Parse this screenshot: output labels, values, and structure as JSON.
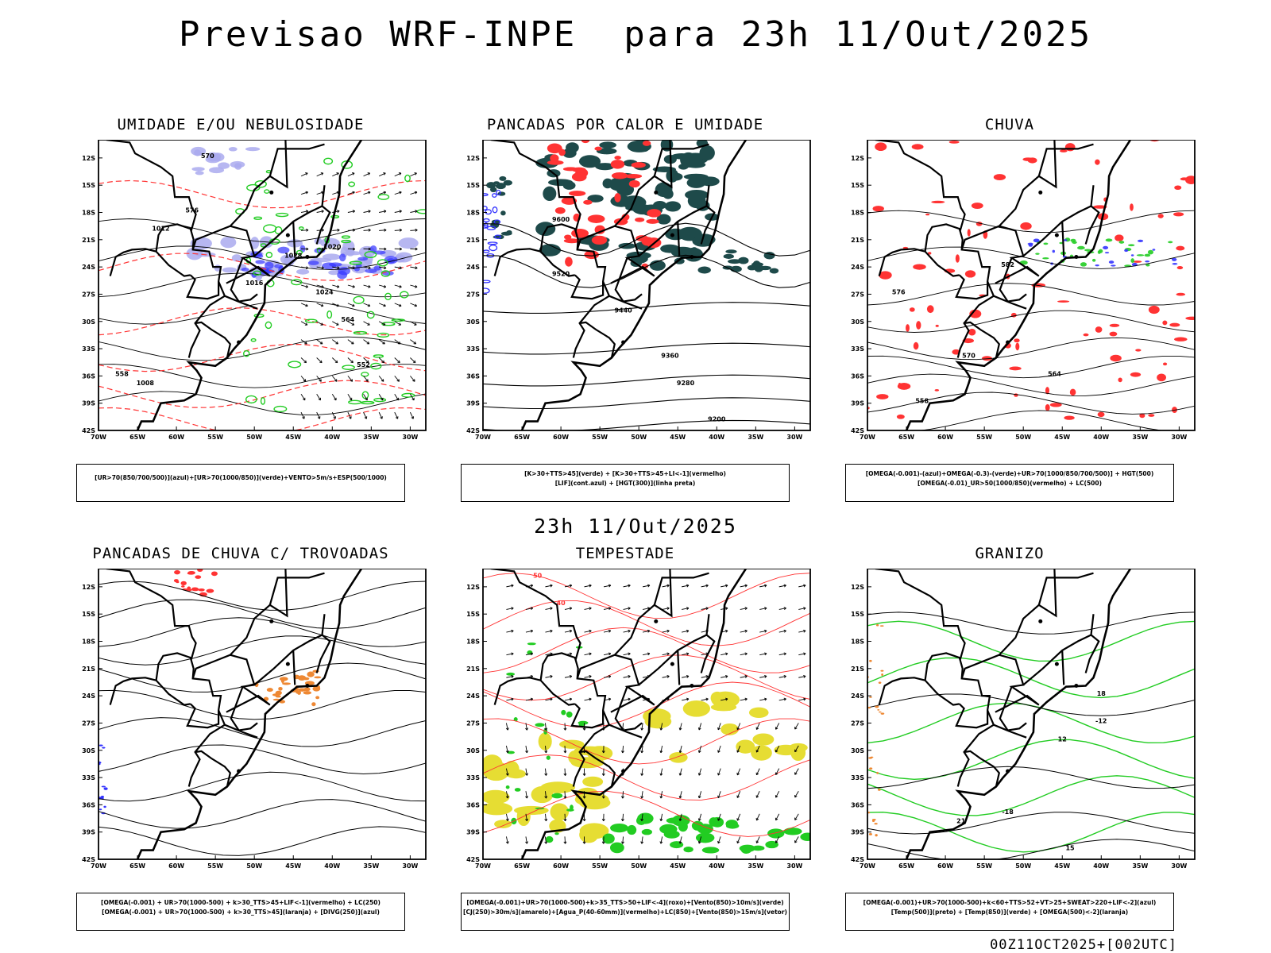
{
  "title": "Previsao WRF-INPE  para 23h 11/Out/2025",
  "mid_label": "23h 11/Out/2025",
  "footer": "00Z11OCT2025+[002UTC]",
  "axes": {
    "lat_labels": [
      "12S",
      "15S",
      "18S",
      "21S",
      "24S",
      "27S",
      "30S",
      "33S",
      "36S",
      "39S",
      "42S"
    ],
    "lon_labels": [
      "70W",
      "65W",
      "60W",
      "55W",
      "50W",
      "45W",
      "40W",
      "35W",
      "30W"
    ]
  },
  "colors": {
    "green": "#22cc22",
    "red": "#ff3333",
    "blue": "#3333ff",
    "lavender": "#aaaaee",
    "dark_teal": "#1e4a4a",
    "yellow": "#e6dd33",
    "orange": "#ee8833"
  },
  "panels": [
    {
      "title": "UMIDADE E/OU NEBULOSIDADE",
      "legend": [
        "[UR>70(850/700/500)](azul)+[UR>70(1000/850)](verde)+VENTO>5m/s+ESP(500/1000)"
      ],
      "contour_labels": [
        "1012",
        "1008",
        "1016",
        "1020",
        "1024",
        "1028",
        "564",
        "570",
        "576",
        "552",
        "558"
      ]
    },
    {
      "title": "PANCADAS POR CALOR E UMIDADE",
      "legend": [
        "[K>30+TTS>45](verde) + [K>30+TTS>45+LI<-1](vermelho)",
        "[LIF](cont.azul) + [HGT(300)](linha preta)"
      ],
      "contour_labels": [
        "9600",
        "9520",
        "9440",
        "9360",
        "9280",
        "9200"
      ]
    },
    {
      "title": "CHUVA",
      "legend": [
        "[OMEGA(-0.001)-(azul)+OMEGA(-0.3)-(verde)+UR>70(1000/850/700/500)] + HGT(500)",
        "[OMEGA(-0.01)_UR>50(1000/850)(vermelho) + LC(500)"
      ],
      "contour_labels": [
        "582",
        "576",
        "570",
        "564",
        "558"
      ]
    },
    {
      "title": "PANCADAS DE CHUVA C/ TROVOADAS",
      "legend": [
        "[OMEGA(-0.001) + UR>70(1000-500) + k>30_TTS>45+LIF<-1](vermelho) + LC(250)",
        "[OMEGA(-0.001) + UR>70(1000-500) + k>30_TTS>45](laranja) + [DIVG(250)](azul)"
      ],
      "contour_labels": []
    },
    {
      "title": "TEMPESTADE",
      "legend": [
        "[OMEGA(-0.001)+UR>70(1000-500)+k>35_TTS>50+LIF<-4](roxo)+[Vento(850)>10m/s](verde)",
        "[CJ(250)>30m/s](amarelo)+[Agua_P(40-60mm)](vermelho)+LC(850)+[Vento(850)>15m/s](vetor)"
      ],
      "contour_labels": [
        "50",
        "40"
      ]
    },
    {
      "title": "GRANIZO",
      "legend": [
        "[OMEGA(-0.001)+UR>70(1000-500)+k<60+TTS>52+VT>25+SWEAT>220+LIF<-2](azul)",
        "[Temp(500)](preto) + [Temp(850)](verde) + [OMEGA(500)<-2](laranja)"
      ],
      "contour_labels": [
        "-12",
        "-18",
        "12",
        "15",
        "18",
        "21"
      ]
    }
  ]
}
